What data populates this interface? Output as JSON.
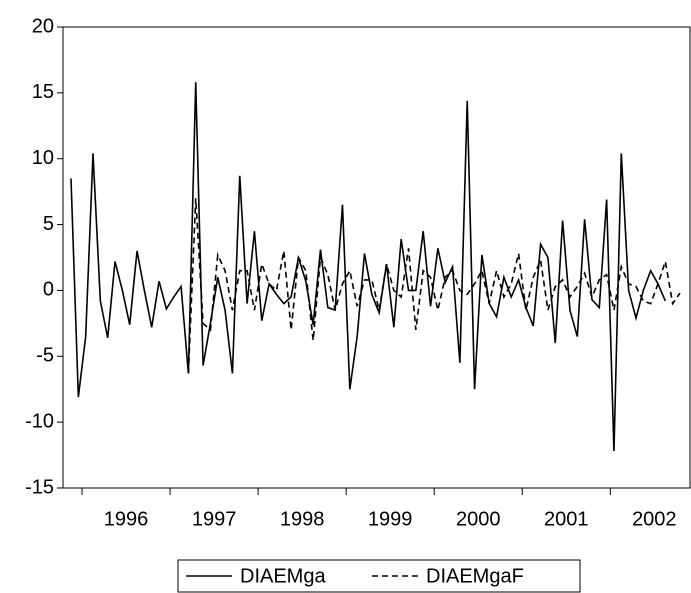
{
  "chart_data": {
    "type": "line",
    "categories": [
      null,
      null,
      "1996",
      null,
      null,
      null,
      null,
      null,
      null,
      null,
      null,
      null,
      null,
      null,
      "1997",
      null,
      null,
      null,
      null,
      null,
      null,
      null,
      null,
      null,
      null,
      null,
      "1998",
      null,
      null,
      null,
      null,
      null,
      null,
      null,
      null,
      null,
      null,
      null,
      "1999",
      null,
      null,
      null,
      null,
      null,
      null,
      null,
      null,
      null,
      null,
      null,
      "2000",
      null,
      null,
      null,
      null,
      null,
      null,
      null,
      null,
      null,
      null,
      null,
      "2001",
      null,
      null,
      null,
      null,
      null,
      null,
      null,
      null,
      null,
      null,
      null,
      "2002",
      null,
      null,
      null,
      null,
      null,
      null,
      null,
      null,
      null
    ],
    "series": [
      {
        "name": "DIAEMga",
        "color": "#000000",
        "style": "solid",
        "values": [
          8.5,
          -8.1,
          -3.5,
          10.4,
          -0.8,
          -3.6,
          2.2,
          0.0,
          -2.6,
          3.0,
          0.0,
          -2.8,
          0.7,
          -1.4,
          -0.5,
          0.3,
          -6.3,
          15.8,
          -5.7,
          -2.5,
          1.0,
          -1.5,
          -6.3,
          8.7,
          -1.0,
          4.5,
          -2.3,
          0.5,
          -0.3,
          -1.0,
          -0.5,
          2.5,
          0.7,
          -2.6,
          3.1,
          -1.3,
          -1.5,
          6.5,
          -7.5,
          -3.5,
          2.8,
          -0.3,
          -1.7,
          2.0,
          -2.8,
          3.9,
          0.0,
          0.0,
          4.5,
          -1.2,
          3.2,
          0.6,
          1.8,
          -5.5,
          14.4,
          -7.5,
          2.7,
          -1.0,
          -2.0,
          1.0,
          -0.5,
          0.8,
          -1.3,
          -2.7,
          3.5,
          2.5,
          -4.0,
          5.3,
          -1.5,
          -3.5,
          5.4,
          -0.7,
          -1.3,
          6.9,
          -12.2,
          10.4,
          0.0,
          -2.1,
          0.0,
          1.5,
          0.5,
          -0.8,
          null,
          null
        ]
      },
      {
        "name": "DIAEMgaF",
        "color": "#000000",
        "style": "dashed",
        "values": [
          null,
          null,
          null,
          null,
          null,
          null,
          null,
          null,
          null,
          null,
          null,
          null,
          null,
          null,
          null,
          null,
          -6.3,
          7.0,
          -2.5,
          -3.0,
          2.7,
          1.5,
          -1.5,
          1.5,
          1.5,
          -1.5,
          2.0,
          0.5,
          0.0,
          3.0,
          -3.0,
          2.5,
          1.5,
          -3.8,
          2.5,
          1.2,
          -1.5,
          0.5,
          1.5,
          -1.2,
          0.8,
          0.8,
          -1.5,
          2.0,
          0.0,
          -0.5,
          3.2,
          -3.0,
          1.5,
          1.0,
          -1.5,
          1.0,
          1.5,
          0.0,
          -0.3,
          0.5,
          1.5,
          -1.0,
          1.5,
          -0.5,
          0.5,
          2.8,
          -1.5,
          1.0,
          2.3,
          -1.5,
          0.3,
          0.8,
          -0.5,
          0.3,
          1.3,
          -0.5,
          0.8,
          1.2,
          -1.5,
          1.8,
          0.5,
          0.3,
          -0.8,
          -1.0,
          0.5,
          2.2,
          -1.0,
          -0.2
        ]
      }
    ],
    "ylim": [
      -15,
      20
    ],
    "yticks": [
      -15,
      -10,
      -5,
      0,
      5,
      10,
      15,
      20
    ],
    "grid": false,
    "legend": "bottom"
  }
}
